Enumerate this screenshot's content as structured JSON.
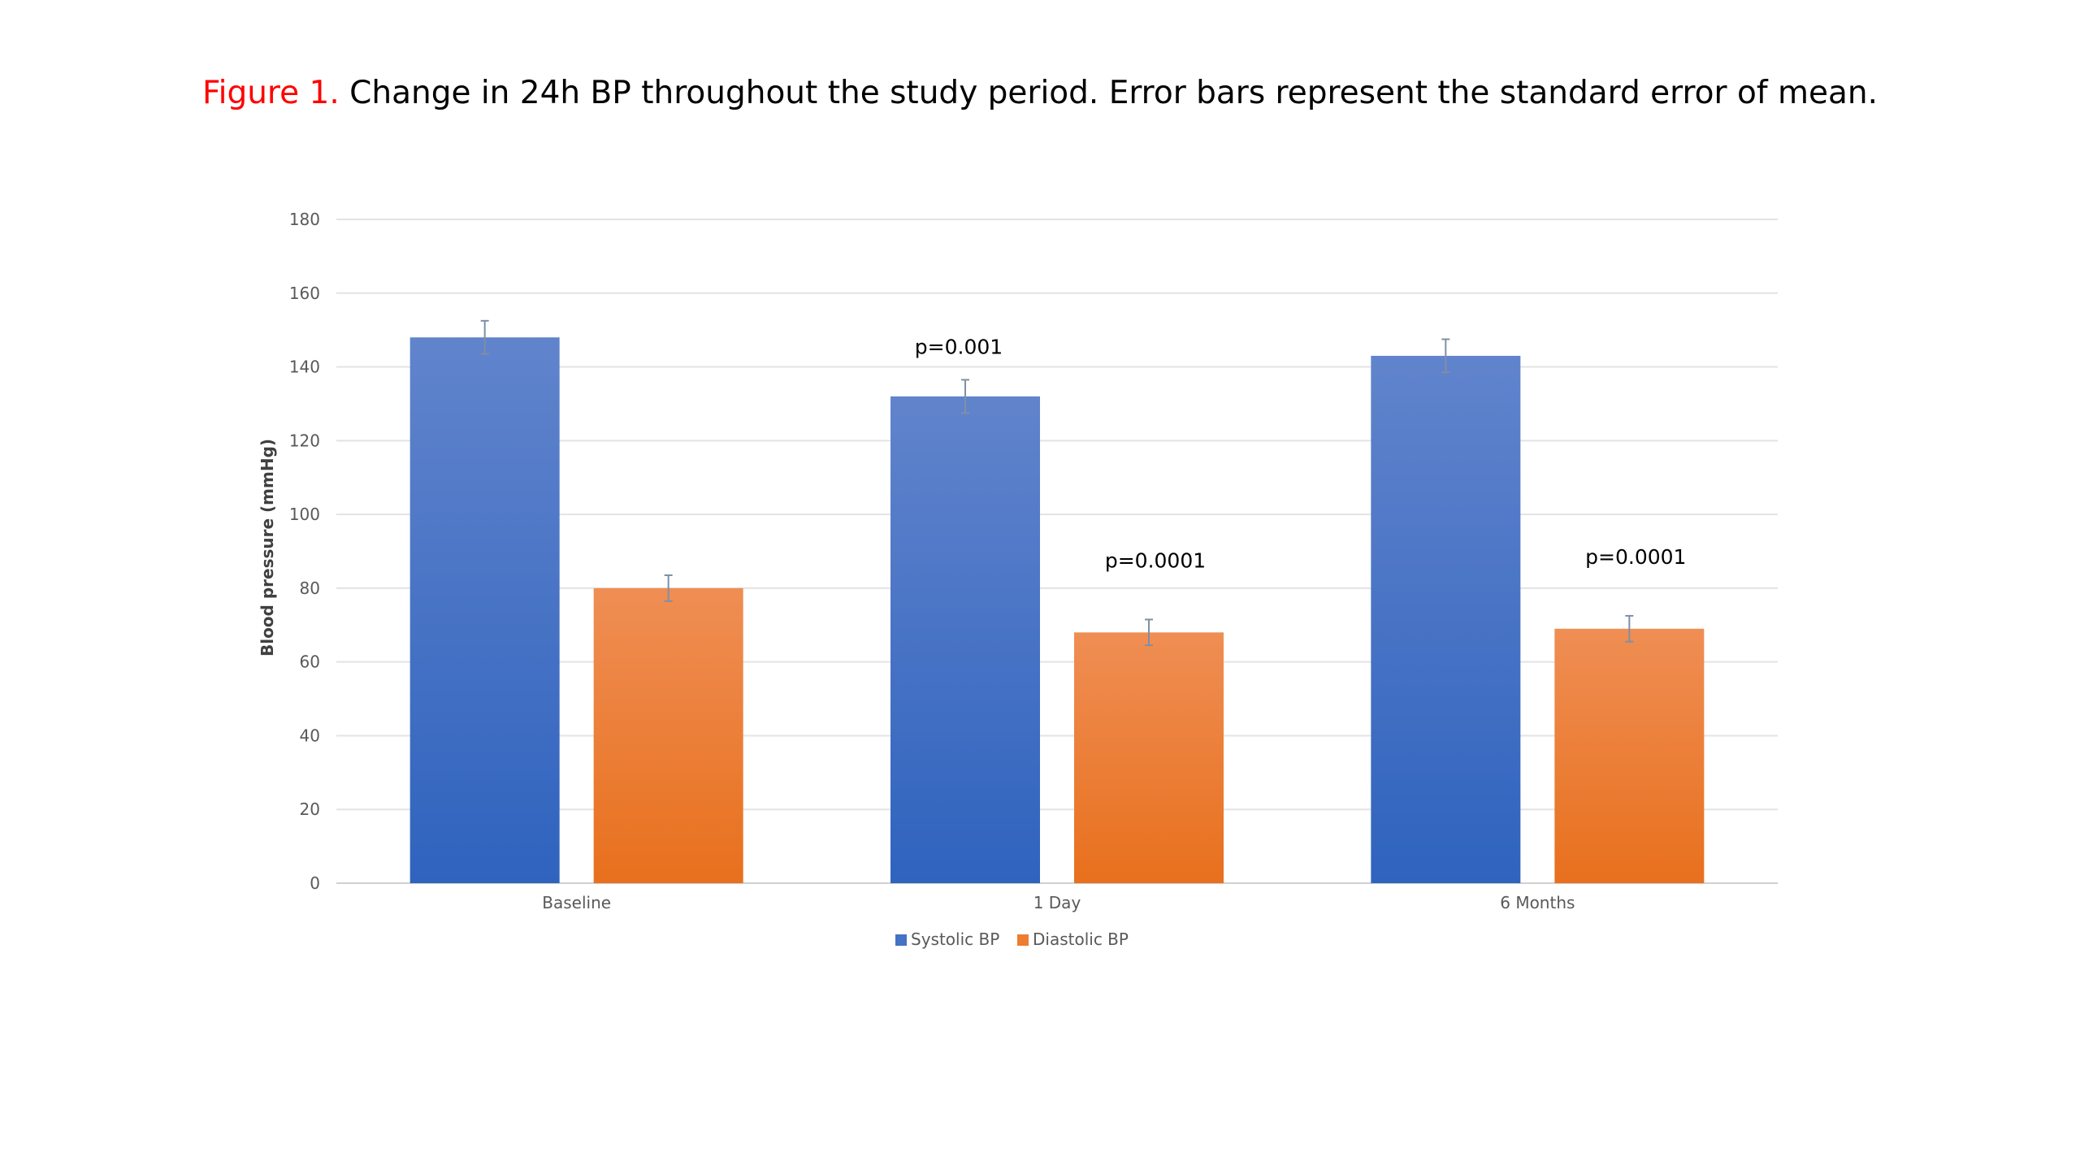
{
  "figure": {
    "caption_lead": "Figure 1.",
    "caption_text": "Change in 24h BP throughout the study period. Error bars represent the standard error of mean."
  },
  "chart_data": {
    "type": "bar",
    "title": "",
    "xlabel": "",
    "ylabel": "Blood pressure (mmHg)",
    "ylim": [
      0,
      180
    ],
    "yticks": [
      0,
      20,
      40,
      60,
      80,
      100,
      120,
      140,
      160,
      180
    ],
    "categories": [
      "Baseline",
      "1 Day",
      "6 Months"
    ],
    "series": [
      {
        "name": "Systolic BP",
        "color": "#4472C4",
        "values": [
          148,
          132,
          143
        ],
        "error": [
          4.5,
          4.5,
          4.5
        ],
        "annotations": [
          "",
          "p=0.001",
          ""
        ]
      },
      {
        "name": "Diastolic BP",
        "color": "#ED7D31",
        "values": [
          80,
          68,
          69
        ],
        "error": [
          3.5,
          3.5,
          3.5
        ],
        "annotations": [
          "",
          "p=0.0001",
          "p=0.0001"
        ]
      }
    ],
    "grid": true,
    "legend_position": "bottom"
  }
}
